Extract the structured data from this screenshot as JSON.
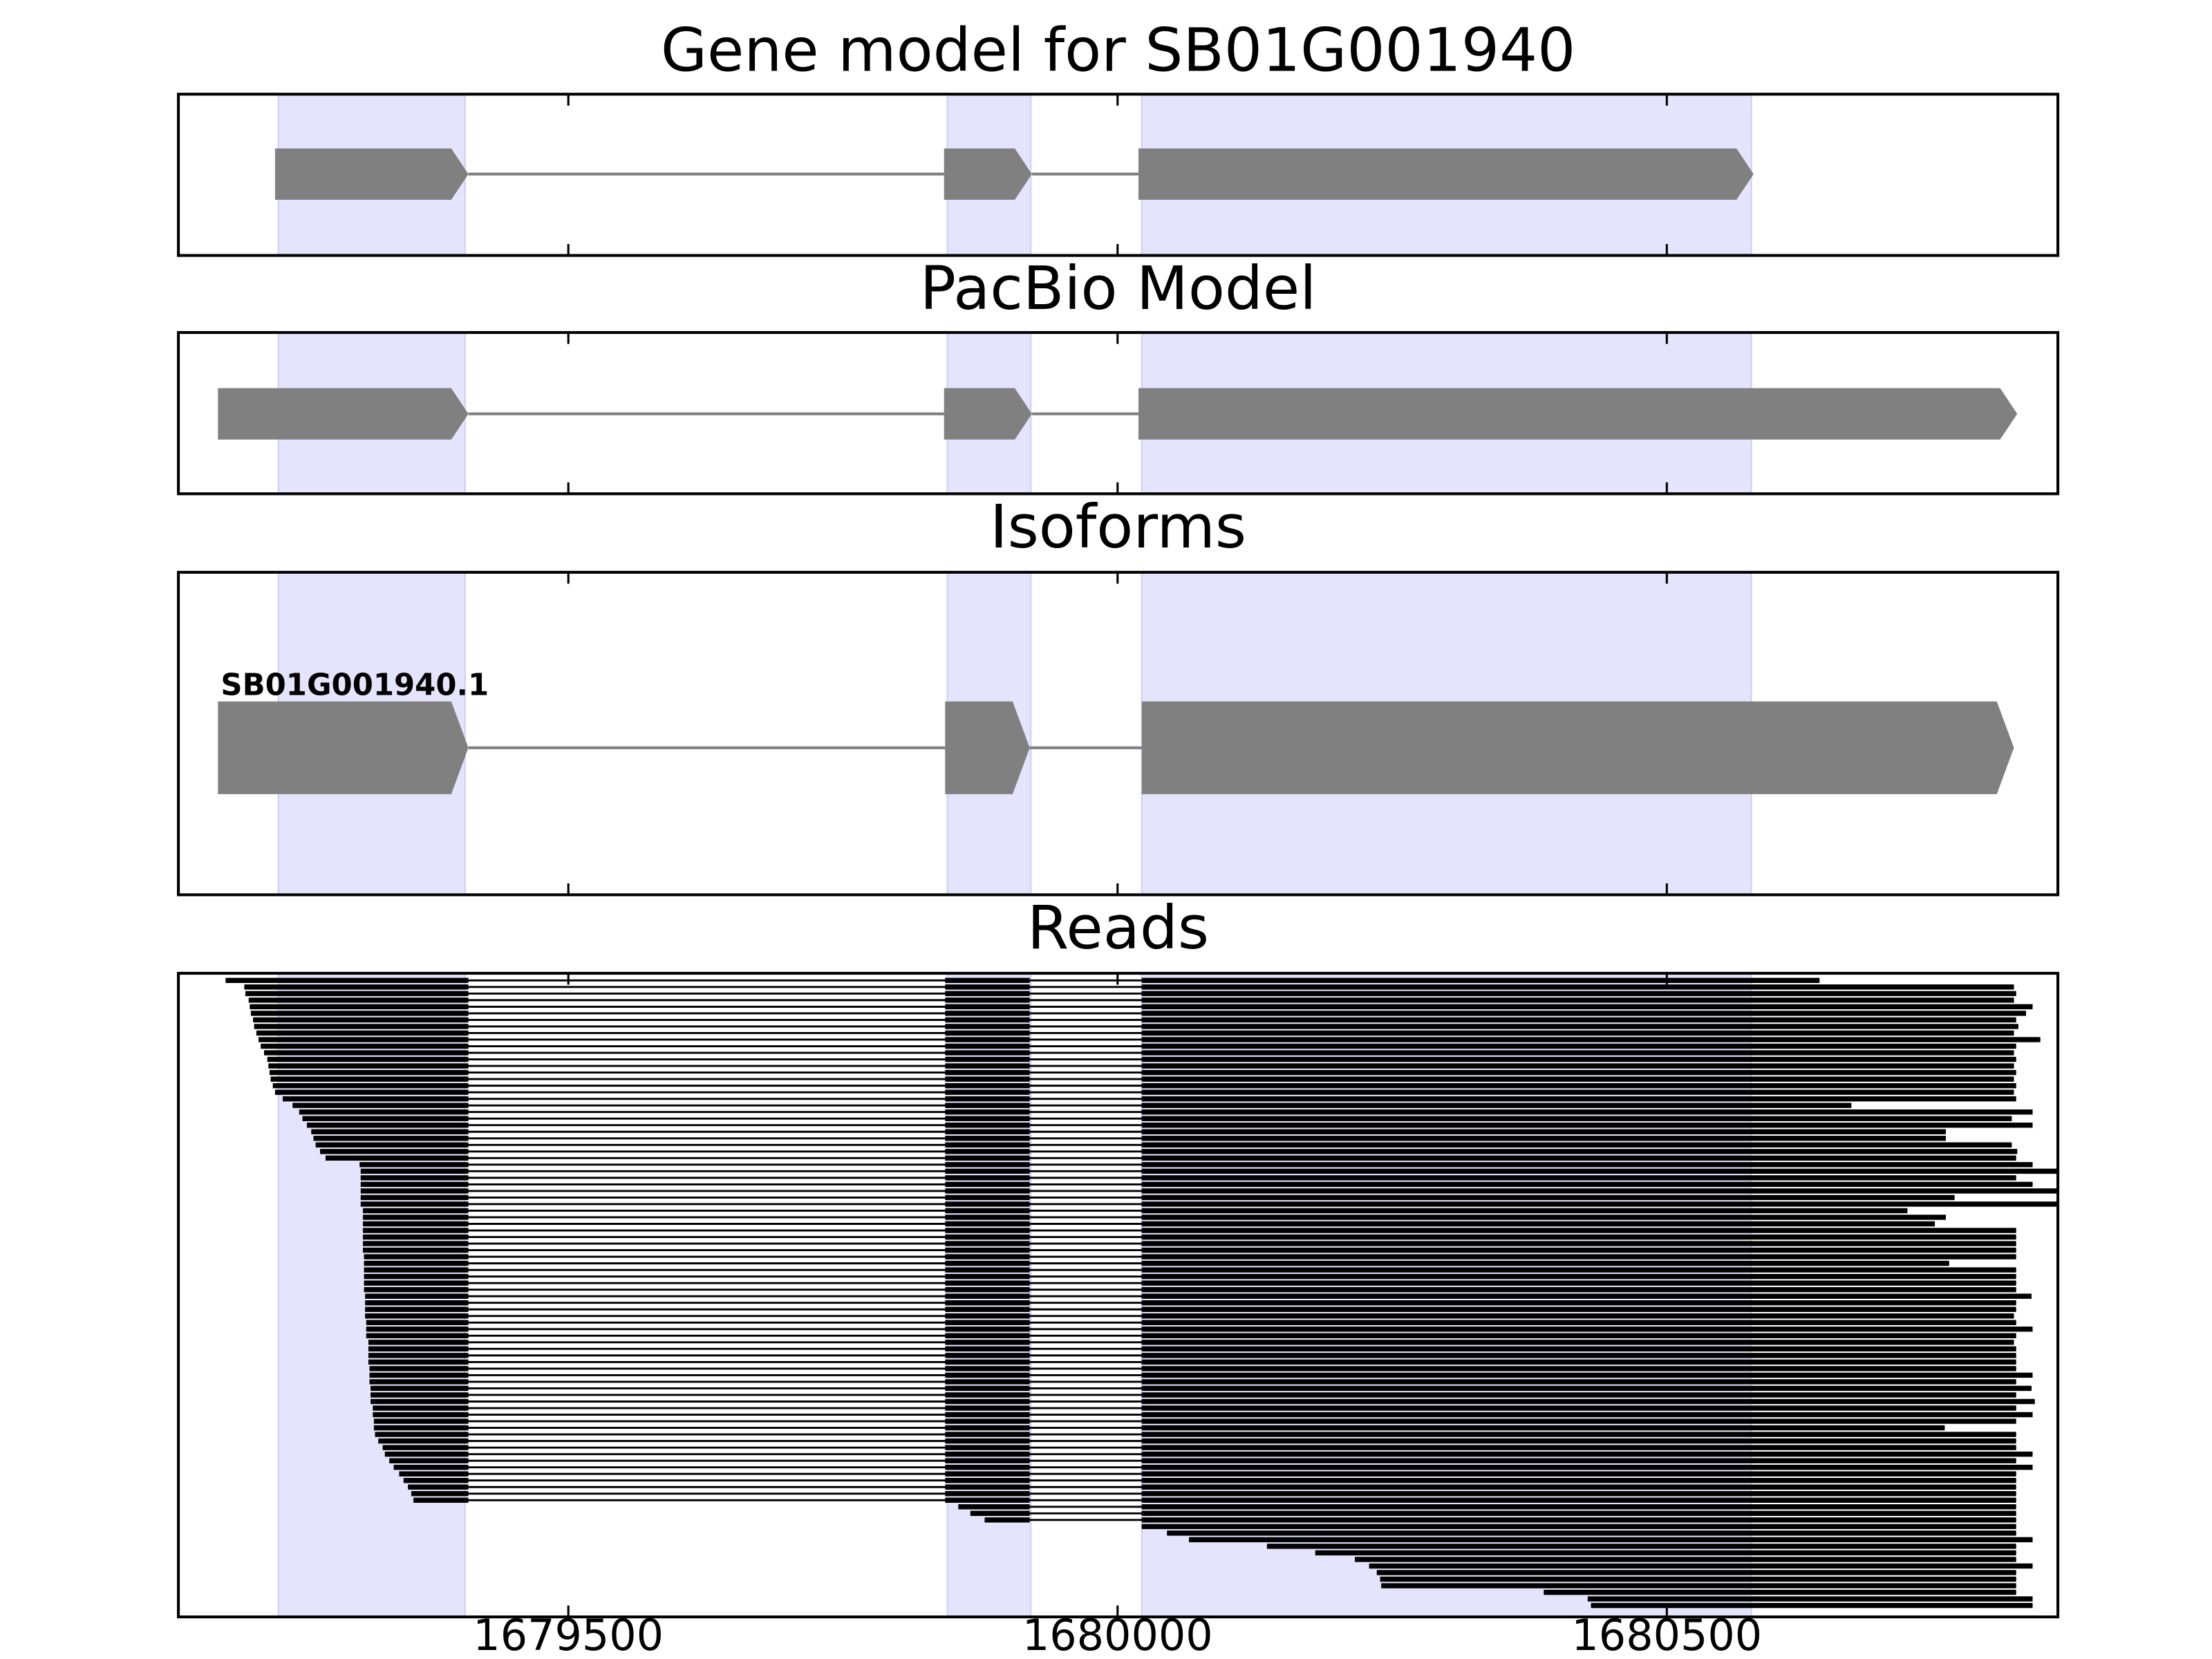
{
  "axis": {
    "xlim": [
      1679145,
      1680856
    ],
    "xticks": [
      1679500,
      1680000,
      1680500
    ]
  },
  "highlights": [
    [
      1679236,
      1679406
    ],
    [
      1679845,
      1679921
    ],
    [
      1680022,
      1680577
    ]
  ],
  "highlight_color": "#e4e4fc",
  "exon_color": "#808080",
  "read_color": "#000000",
  "chart_data": [
    {
      "type": "gene",
      "title": "Gene model for SB01G001940",
      "exons": [
        [
          1679233,
          1679409
        ],
        [
          1679842,
          1679922
        ],
        [
          1680019,
          1680579
        ]
      ]
    },
    {
      "type": "gene",
      "title": "PacBio Model",
      "exons": [
        [
          1679181,
          1679409
        ],
        [
          1679842,
          1679922
        ],
        [
          1680019,
          1680819
        ]
      ]
    },
    {
      "type": "gene",
      "title": "Isoforms",
      "label": "SB01G001940.1",
      "exons": [
        [
          1679181,
          1679409
        ],
        [
          1679843,
          1679920
        ],
        [
          1680022,
          1680816
        ]
      ]
    },
    {
      "type": "reads",
      "title": "Reads",
      "reads": [
        [
          1679188,
          1680639
        ],
        [
          1679205,
          1680816
        ],
        [
          1679206,
          1680818
        ],
        [
          1679209,
          1680816
        ],
        [
          1679210,
          1680833
        ],
        [
          1679211,
          1680827
        ],
        [
          1679213,
          1680818
        ],
        [
          1679214,
          1680820
        ],
        [
          1679216,
          1680816
        ],
        [
          1679218,
          1680840
        ],
        [
          1679220,
          1680818
        ],
        [
          1679223,
          1680816
        ],
        [
          1679226,
          1680818
        ],
        [
          1679227,
          1680816
        ],
        [
          1679228,
          1680818
        ],
        [
          1679229,
          1680816
        ],
        [
          1679231,
          1680818
        ],
        [
          1679233,
          1680816
        ],
        [
          1679240,
          1680818
        ],
        [
          1679249,
          1680668
        ],
        [
          1679255,
          1680833
        ],
        [
          1679258,
          1680814
        ],
        [
          1679262,
          1680833
        ],
        [
          1679266,
          1680754
        ],
        [
          1679268,
          1680754
        ],
        [
          1679270,
          1680814
        ],
        [
          1679274,
          1680819
        ],
        [
          1679279,
          1680818
        ],
        [
          1679310,
          1680833
        ],
        [
          1679311,
          1680855
        ],
        [
          1679311,
          1680818
        ],
        [
          1679311,
          1680833
        ],
        [
          1679311,
          1680855
        ],
        [
          1679311,
          1680762
        ],
        [
          1679311,
          1680855
        ],
        [
          1679313,
          1680719
        ],
        [
          1679313,
          1680754
        ],
        [
          1679313,
          1680744
        ],
        [
          1679313,
          1680818
        ],
        [
          1679313,
          1680818
        ],
        [
          1679313,
          1680818
        ],
        [
          1679313,
          1680818
        ],
        [
          1679314,
          1680818
        ],
        [
          1679314,
          1680757
        ],
        [
          1679314,
          1680818
        ],
        [
          1679314,
          1680818
        ],
        [
          1679314,
          1680818
        ],
        [
          1679314,
          1680818
        ],
        [
          1679315,
          1680832
        ],
        [
          1679315,
          1680818
        ],
        [
          1679315,
          1680818
        ],
        [
          1679315,
          1680816
        ],
        [
          1679316,
          1680818
        ],
        [
          1679316,
          1680833
        ],
        [
          1679316,
          1680818
        ],
        [
          1679318,
          1680816
        ],
        [
          1679318,
          1680818
        ],
        [
          1679318,
          1680818
        ],
        [
          1679318,
          1680818
        ],
        [
          1679319,
          1680818
        ],
        [
          1679319,
          1680833
        ],
        [
          1679319,
          1680818
        ],
        [
          1679320,
          1680832
        ],
        [
          1679320,
          1680818
        ],
        [
          1679320,
          1680835
        ],
        [
          1679322,
          1680818
        ],
        [
          1679322,
          1680833
        ],
        [
          1679323,
          1680818
        ],
        [
          1679323,
          1680753
        ],
        [
          1679324,
          1680818
        ],
        [
          1679327,
          1680818
        ],
        [
          1679331,
          1680818
        ],
        [
          1679333,
          1680833
        ],
        [
          1679337,
          1680818
        ],
        [
          1679341,
          1680833
        ],
        [
          1679346,
          1680818
        ],
        [
          1679350,
          1680818
        ],
        [
          1679354,
          1680818
        ],
        [
          1679357,
          1680818
        ],
        [
          1679359,
          1680818
        ],
        [
          1679855,
          1680818
        ],
        [
          1679866,
          1680818
        ],
        [
          1679879,
          1680818
        ],
        [
          1680022,
          1680818
        ],
        [
          1680045,
          1680818
        ],
        [
          1680065,
          1680833
        ],
        [
          1680136,
          1680818
        ],
        [
          1680180,
          1680818
        ],
        [
          1680216,
          1680818
        ],
        [
          1680229,
          1680833
        ],
        [
          1680236,
          1680818
        ],
        [
          1680239,
          1680818
        ],
        [
          1680240,
          1680818
        ],
        [
          1680388,
          1680818
        ],
        [
          1680428,
          1680833
        ],
        [
          1680431,
          1680833
        ]
      ]
    }
  ]
}
